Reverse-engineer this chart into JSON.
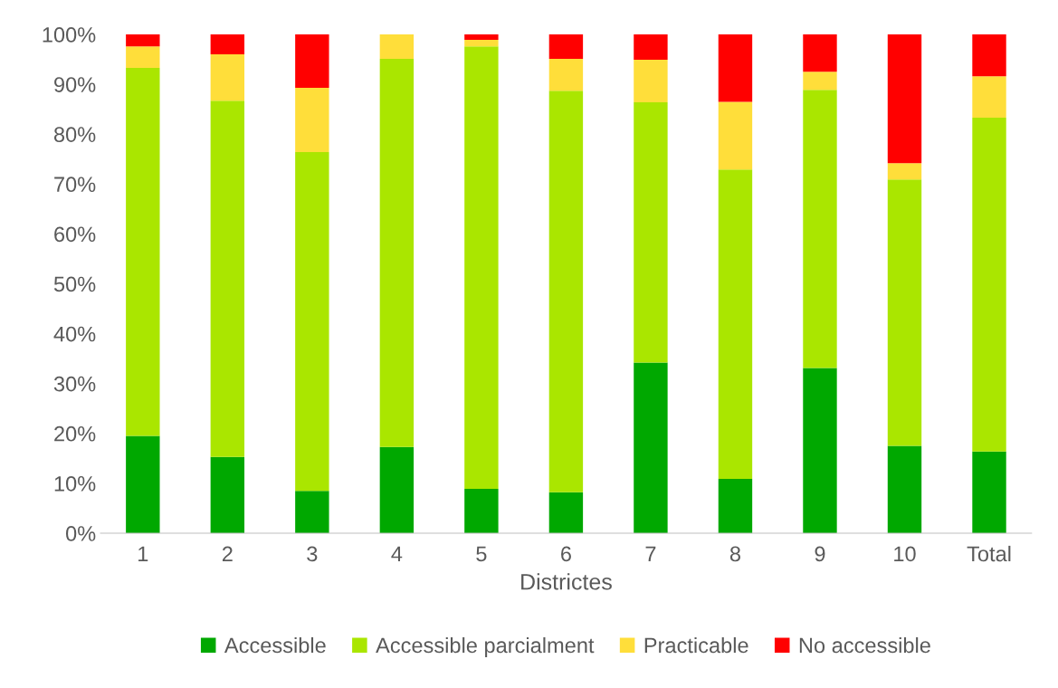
{
  "chart_data": {
    "type": "bar",
    "stacked": true,
    "xlabel": "Districtes",
    "categories": [
      "1",
      "2",
      "3",
      "4",
      "5",
      "6",
      "7",
      "8",
      "9",
      "10",
      "Total"
    ],
    "series": [
      {
        "name": "Accessible",
        "color": "#00a800",
        "values": [
          19.5,
          15.3,
          8.5,
          17.3,
          8.9,
          8.2,
          34.2,
          10.9,
          33.1,
          17.5,
          16.4
        ]
      },
      {
        "name": "Accessible parcialment",
        "color": "#aae600",
        "values": [
          73.8,
          71.4,
          67.9,
          77.8,
          88.7,
          80.5,
          52.2,
          62.0,
          55.8,
          53.4,
          66.9
        ]
      },
      {
        "name": "Practicable",
        "color": "#ffde3a",
        "values": [
          4.3,
          9.3,
          12.9,
          4.9,
          1.3,
          6.4,
          8.5,
          13.6,
          3.6,
          3.3,
          8.3
        ]
      },
      {
        "name": "No accessible",
        "color": "#ff0000",
        "values": [
          2.4,
          4.0,
          10.7,
          0,
          1.1,
          4.9,
          5.1,
          13.5,
          7.5,
          25.8,
          8.4
        ]
      }
    ],
    "ylim": [
      0,
      100
    ],
    "yticks": [
      {
        "value": 0,
        "label": "0%"
      },
      {
        "value": 10,
        "label": "10%"
      },
      {
        "value": 20,
        "label": "20%"
      },
      {
        "value": 30,
        "label": "30%"
      },
      {
        "value": 40,
        "label": "40%"
      },
      {
        "value": 50,
        "label": "50%"
      },
      {
        "value": 60,
        "label": "60%"
      },
      {
        "value": 70,
        "label": "70%"
      },
      {
        "value": 80,
        "label": "80%"
      },
      {
        "value": 90,
        "label": "90%"
      },
      {
        "value": 100,
        "label": "100%"
      }
    ],
    "grid": false,
    "legend": "bottom"
  }
}
